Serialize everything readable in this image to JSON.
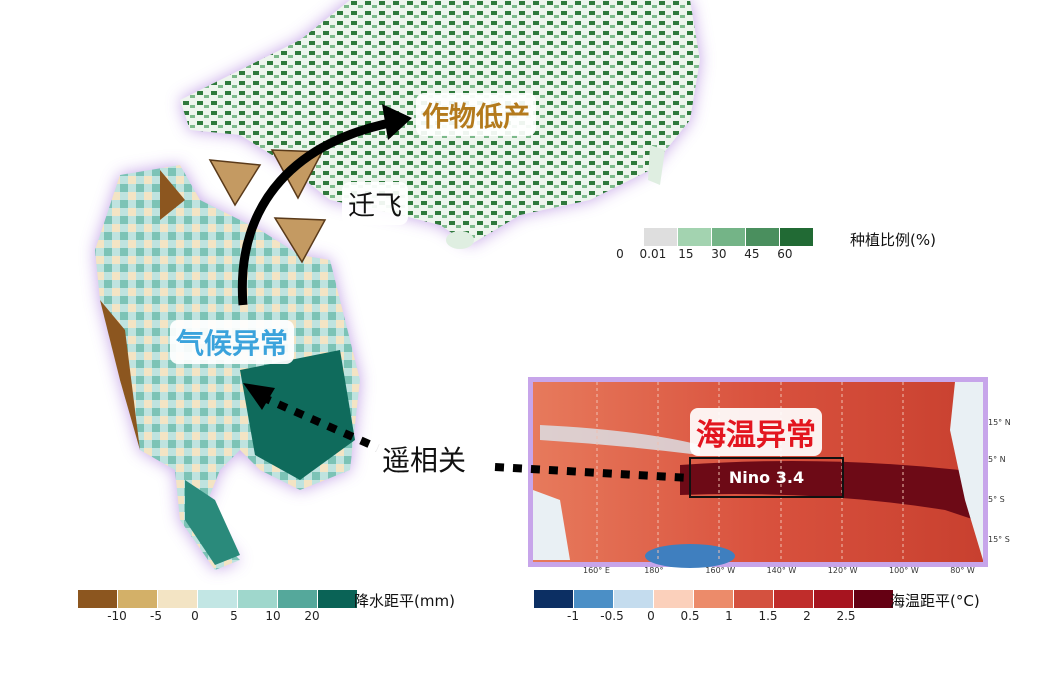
{
  "labels": {
    "crop_low_yield": "作物低产",
    "migration": "迁飞",
    "climate_anomaly": "气候异常",
    "teleconnection": "遥相关",
    "sst_anomaly": "海温异常",
    "nino_box": "Nino 3.4"
  },
  "colors": {
    "crop": "#b47a1c",
    "climate": "#3ba3dc",
    "sst": "#e3151f",
    "glow": "#b48be0"
  },
  "legend_planting": {
    "title": "种植比例(%)",
    "colors": [
      "#ffffff",
      "#dedede",
      "#a3d3b0",
      "#74b487",
      "#4a8f5e",
      "#216a34"
    ],
    "ticks": [
      "0",
      "0.01",
      "15",
      "30",
      "45",
      "60"
    ]
  },
  "legend_precip": {
    "title": "降水距平(mm)",
    "colors": [
      "#8c561f",
      "#d3b068",
      "#f3e4c4",
      "#c2e6e4",
      "#9fd7cc",
      "#55a89b",
      "#0a6356"
    ],
    "ticks": [
      "-10",
      "-5",
      "0",
      "5",
      "10",
      "20"
    ]
  },
  "legend_sst": {
    "title": "海温距平(°C)",
    "colors": [
      "#0c2f63",
      "#4b8fc6",
      "#c4dcee",
      "#fbd0bb",
      "#ec8b6a",
      "#d4513f",
      "#c02d2b",
      "#a7141f",
      "#650013"
    ],
    "ticks": [
      "-1",
      "-0.5",
      "0",
      "0.5",
      "1",
      "1.5",
      "2",
      "2.5"
    ]
  },
  "ocean_axes": {
    "x": [
      "160° E",
      "180°",
      "160° W",
      "140° W",
      "120° W",
      "100° W",
      "80° W"
    ],
    "y": [
      "15° N",
      "5° N",
      "5° S",
      "15° S"
    ]
  }
}
